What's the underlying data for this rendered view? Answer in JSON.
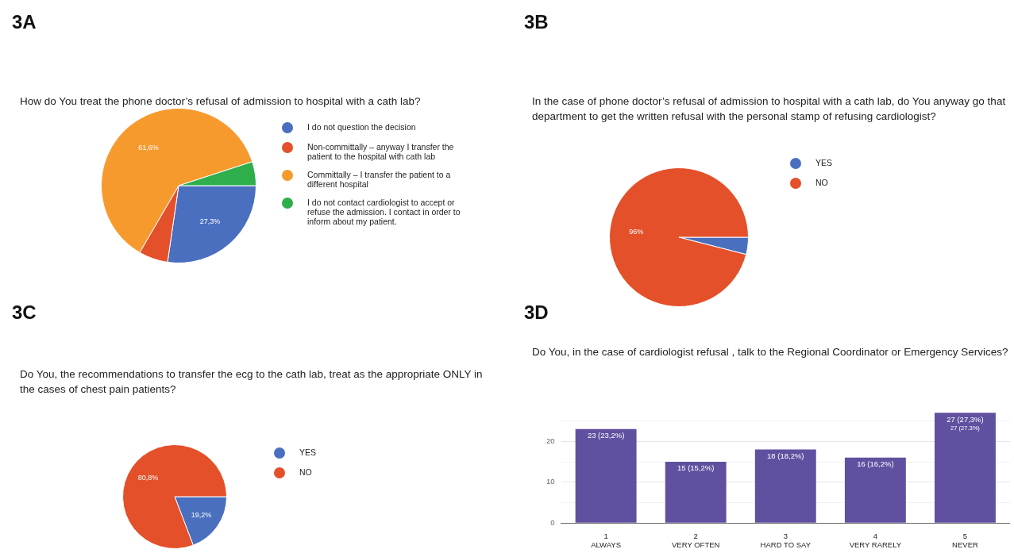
{
  "chart_data": [
    {
      "type": "pie",
      "title": "3A",
      "subtitle": "How do You treat the phone doctor’s refusal of admission to hospital with a cath lab?",
      "categories": [
        "I do not question the decision",
        "Non-committally – anyway I transfer the patient to the hospital with cath lab",
        "Committally – I transfer the patient to a different hospital",
        "I do not contact cardiologist to accept or refuse the admission. I contact in order to inform about my patient."
      ],
      "values": [
        27.3,
        6.1,
        61.6,
        5.0
      ],
      "colors": [
        "#4a6fbf",
        "#e4502a",
        "#f79a2e",
        "#2fae4c"
      ],
      "value_labels": [
        "27,3%",
        null,
        "61,6%",
        null
      ],
      "legend": "right"
    },
    {
      "type": "pie",
      "title": "3B",
      "subtitle": "In the case of phone doctor’s refusal of admission to hospital with a cath lab, do You anyway go that department to get the written refusal with the personal  stamp of refusing cardiologist?",
      "categories": [
        "YES",
        "NO"
      ],
      "values": [
        4,
        96
      ],
      "colors": [
        "#4a6fbf",
        "#e4502a"
      ],
      "value_labels": [
        null,
        "96%"
      ],
      "legend": "right"
    },
    {
      "type": "pie",
      "title": "3C",
      "subtitle": "Do You, the recommendations to transfer the ecg to the cath lab, treat  as the appropriate ONLY in the cases of chest pain patients?",
      "categories": [
        "YES",
        "NO"
      ],
      "values": [
        19.2,
        80.8
      ],
      "colors": [
        "#4a6fbf",
        "#e4502a"
      ],
      "value_labels": [
        "19,2%",
        "80,8%"
      ],
      "legend": "right"
    },
    {
      "type": "bar",
      "title": "3D",
      "subtitle": "Do You, in the case of cardiologist refusal , talk to the Regional Coordinator or Emergency Services?",
      "categories": [
        "1\nALWAYS",
        "2\nVERY OFTEN",
        "3\nHARD TO SAY",
        "4\nVERY RARELY",
        "5\nNEVER"
      ],
      "values": [
        23,
        15,
        18,
        16,
        27
      ],
      "color": "#6150a0",
      "value_labels": [
        "23 (23,2%)",
        "15 (15,2%)",
        "18 (18,2%)",
        "16 (16,2%)",
        "27 (27,3%)\n27 (27.3%)"
      ],
      "ylim": [
        0,
        27.5
      ],
      "yticks": [
        0,
        {
          "value": 5,
          "label": null
        },
        10,
        {
          "value": 15,
          "label": null
        },
        20,
        {
          "value": 25,
          "label": null
        }
      ],
      "grid": "y"
    }
  ]
}
